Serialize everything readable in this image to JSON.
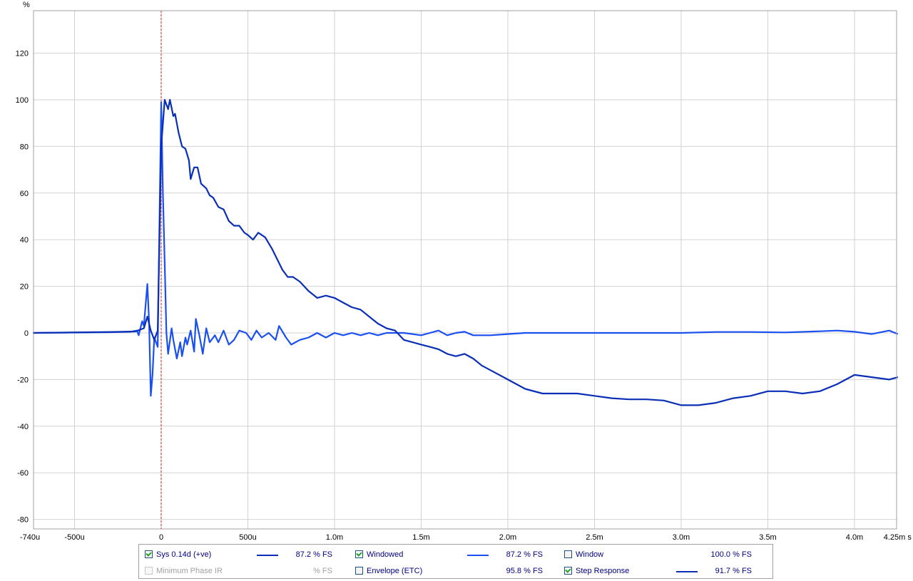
{
  "chart_data": {
    "type": "line",
    "title": "",
    "ylabel": "%",
    "xlabel": "s",
    "xlim": [
      -0.00074,
      0.00425
    ],
    "ylim": [
      -84,
      140
    ],
    "x_ticks": [
      {
        "v": -0.00074,
        "label": "-740u"
      },
      {
        "v": -0.0005,
        "label": "-500u"
      },
      {
        "v": 0.0,
        "label": "0"
      },
      {
        "v": 0.0005,
        "label": "500u"
      },
      {
        "v": 0.001,
        "label": "1.0m"
      },
      {
        "v": 0.0015,
        "label": "1.5m"
      },
      {
        "v": 0.002,
        "label": "2.0m"
      },
      {
        "v": 0.0025,
        "label": "2.5m"
      },
      {
        "v": 0.003,
        "label": "3.0m"
      },
      {
        "v": 0.0035,
        "label": "3.5m"
      },
      {
        "v": 0.004,
        "label": "4.0m"
      },
      {
        "v": 0.00425,
        "label": "4.25m s"
      }
    ],
    "y_ticks": [
      120,
      100,
      80,
      60,
      40,
      20,
      0,
      -20,
      -40,
      -60,
      -80
    ],
    "marker_x": 0.0,
    "grid": true,
    "series": [
      {
        "name": "Windowed",
        "color": "#1a4ff0",
        "points": [
          [
            -0.00074,
            0
          ],
          [
            -0.0003,
            0.3
          ],
          [
            -0.00018,
            0.5
          ],
          [
            -0.00014,
            1
          ],
          [
            -0.00013,
            -1
          ],
          [
            -0.00011,
            5
          ],
          [
            -0.0001,
            3
          ],
          [
            -8e-05,
            21
          ],
          [
            -7e-05,
            5
          ],
          [
            -6e-05,
            -27
          ],
          [
            -5e-05,
            -18
          ],
          [
            -4e-05,
            -2
          ],
          [
            -2e-05,
            -6
          ],
          [
            0.0,
            99
          ],
          [
            1e-05,
            60
          ],
          [
            2e-05,
            30
          ],
          [
            3e-05,
            0
          ],
          [
            4e-05,
            -9
          ],
          [
            6e-05,
            2
          ],
          [
            7e-05,
            -3
          ],
          [
            9e-05,
            -11
          ],
          [
            0.00011,
            -4
          ],
          [
            0.00012,
            -10
          ],
          [
            0.00014,
            -2
          ],
          [
            0.00015,
            -5
          ],
          [
            0.00017,
            1
          ],
          [
            0.00019,
            -8
          ],
          [
            0.0002,
            6
          ],
          [
            0.00022,
            -1
          ],
          [
            0.00024,
            -9
          ],
          [
            0.00026,
            2
          ],
          [
            0.00028,
            -4
          ],
          [
            0.00031,
            -1
          ],
          [
            0.00033,
            -4
          ],
          [
            0.00036,
            1
          ],
          [
            0.00039,
            -5
          ],
          [
            0.00042,
            -3
          ],
          [
            0.00045,
            1
          ],
          [
            0.00049,
            0
          ],
          [
            0.00052,
            -3
          ],
          [
            0.00055,
            1
          ],
          [
            0.00058,
            -2
          ],
          [
            0.00062,
            0
          ],
          [
            0.00066,
            -3
          ],
          [
            0.00068,
            3
          ],
          [
            0.00072,
            -2
          ],
          [
            0.00075,
            -5
          ],
          [
            0.0008,
            -3
          ],
          [
            0.00085,
            -2
          ],
          [
            0.0009,
            0
          ],
          [
            0.00095,
            -2
          ],
          [
            0.001,
            0
          ],
          [
            0.00105,
            -1
          ],
          [
            0.0011,
            0
          ],
          [
            0.00115,
            -1
          ],
          [
            0.0012,
            0
          ],
          [
            0.00125,
            -1
          ],
          [
            0.0013,
            0
          ],
          [
            0.0014,
            0
          ],
          [
            0.0015,
            -1
          ],
          [
            0.00155,
            0
          ],
          [
            0.0016,
            1
          ],
          [
            0.00165,
            -1
          ],
          [
            0.0017,
            0
          ],
          [
            0.00175,
            0.5
          ],
          [
            0.0018,
            -1
          ],
          [
            0.0019,
            -1
          ],
          [
            0.002,
            -0.5
          ],
          [
            0.0021,
            0
          ],
          [
            0.0022,
            0
          ],
          [
            0.0023,
            0
          ],
          [
            0.0025,
            0
          ],
          [
            0.0027,
            0
          ],
          [
            0.0029,
            0
          ],
          [
            0.003,
            0
          ],
          [
            0.0032,
            0.4
          ],
          [
            0.0034,
            0.4
          ],
          [
            0.0036,
            0.2
          ],
          [
            0.0038,
            0.7
          ],
          [
            0.0039,
            1
          ],
          [
            0.004,
            0.5
          ],
          [
            0.0041,
            -0.5
          ],
          [
            0.0042,
            1
          ],
          [
            0.00425,
            -0.5
          ]
        ]
      },
      {
        "name": "Step Response",
        "color": "#0a2fb5",
        "points": [
          [
            -0.00074,
            0
          ],
          [
            -0.0003,
            0.4
          ],
          [
            -0.00015,
            0.6
          ],
          [
            -0.0001,
            2
          ],
          [
            -8e-05,
            7
          ],
          [
            -6e-05,
            1
          ],
          [
            -4e-05,
            -3
          ],
          [
            -2e-05,
            1
          ],
          [
            0.0,
            80
          ],
          [
            2e-05,
            100
          ],
          [
            4e-05,
            96
          ],
          [
            5e-05,
            100
          ],
          [
            7e-05,
            93
          ],
          [
            8e-05,
            94
          ],
          [
            0.0001,
            86
          ],
          [
            0.00012,
            80
          ],
          [
            0.00014,
            79
          ],
          [
            0.00016,
            74
          ],
          [
            0.00017,
            66
          ],
          [
            0.00019,
            71
          ],
          [
            0.00021,
            71
          ],
          [
            0.00023,
            64
          ],
          [
            0.00026,
            62
          ],
          [
            0.00028,
            59
          ],
          [
            0.0003,
            58
          ],
          [
            0.00033,
            54
          ],
          [
            0.00036,
            53
          ],
          [
            0.00039,
            48
          ],
          [
            0.00042,
            46
          ],
          [
            0.00045,
            46
          ],
          [
            0.00048,
            43
          ],
          [
            0.0005,
            42
          ],
          [
            0.00053,
            40
          ],
          [
            0.00056,
            43
          ],
          [
            0.0006,
            41
          ],
          [
            0.00064,
            36
          ],
          [
            0.00068,
            30
          ],
          [
            0.0007,
            27
          ],
          [
            0.00073,
            24
          ],
          [
            0.00076,
            24
          ],
          [
            0.0008,
            22
          ],
          [
            0.00085,
            18
          ],
          [
            0.0009,
            15
          ],
          [
            0.00095,
            16
          ],
          [
            0.001,
            15
          ],
          [
            0.00105,
            13
          ],
          [
            0.0011,
            11
          ],
          [
            0.00115,
            10
          ],
          [
            0.0012,
            7
          ],
          [
            0.00125,
            4
          ],
          [
            0.0013,
            2
          ],
          [
            0.00135,
            1
          ],
          [
            0.0014,
            -3
          ],
          [
            0.00145,
            -4
          ],
          [
            0.0015,
            -5
          ],
          [
            0.00155,
            -6
          ],
          [
            0.0016,
            -7
          ],
          [
            0.00165,
            -9
          ],
          [
            0.0017,
            -10
          ],
          [
            0.00175,
            -9
          ],
          [
            0.0018,
            -11
          ],
          [
            0.00185,
            -14
          ],
          [
            0.0019,
            -16
          ],
          [
            0.002,
            -20
          ],
          [
            0.0021,
            -24
          ],
          [
            0.0022,
            -26
          ],
          [
            0.0023,
            -26
          ],
          [
            0.0024,
            -26
          ],
          [
            0.0025,
            -27
          ],
          [
            0.0026,
            -28
          ],
          [
            0.0027,
            -28.5
          ],
          [
            0.0028,
            -28.5
          ],
          [
            0.0029,
            -29
          ],
          [
            0.003,
            -31
          ],
          [
            0.0031,
            -31
          ],
          [
            0.0032,
            -30
          ],
          [
            0.0033,
            -28
          ],
          [
            0.0034,
            -27
          ],
          [
            0.0035,
            -25
          ],
          [
            0.0036,
            -25
          ],
          [
            0.0037,
            -26
          ],
          [
            0.0038,
            -25
          ],
          [
            0.0039,
            -22
          ],
          [
            0.004,
            -18
          ],
          [
            0.0041,
            -19
          ],
          [
            0.0042,
            -20
          ],
          [
            0.00425,
            -19
          ]
        ]
      }
    ]
  },
  "legend": {
    "rows": [
      [
        {
          "label": "Sys 0.14d (+ve)",
          "checked": true,
          "enabled": true,
          "line": true,
          "line_color": "#0a2fb5",
          "value": "87.2 % FS"
        },
        {
          "label": "Windowed",
          "checked": true,
          "enabled": true,
          "line": true,
          "line_color": "#1a4ff0",
          "value": "87.2 % FS"
        },
        {
          "label": "Window",
          "checked": false,
          "enabled": true,
          "line": false,
          "line_color": "",
          "value": "100.0 % FS"
        }
      ],
      [
        {
          "label": "Minimum Phase IR",
          "checked": false,
          "enabled": false,
          "line": false,
          "line_color": "",
          "value": "% FS"
        },
        {
          "label": "Envelope (ETC)",
          "checked": false,
          "enabled": true,
          "line": false,
          "line_color": "",
          "value": "95.8 % FS"
        },
        {
          "label": "Step Response",
          "checked": true,
          "enabled": true,
          "line": true,
          "line_color": "#0a2fb5",
          "value": "91.7 % FS"
        }
      ]
    ]
  }
}
